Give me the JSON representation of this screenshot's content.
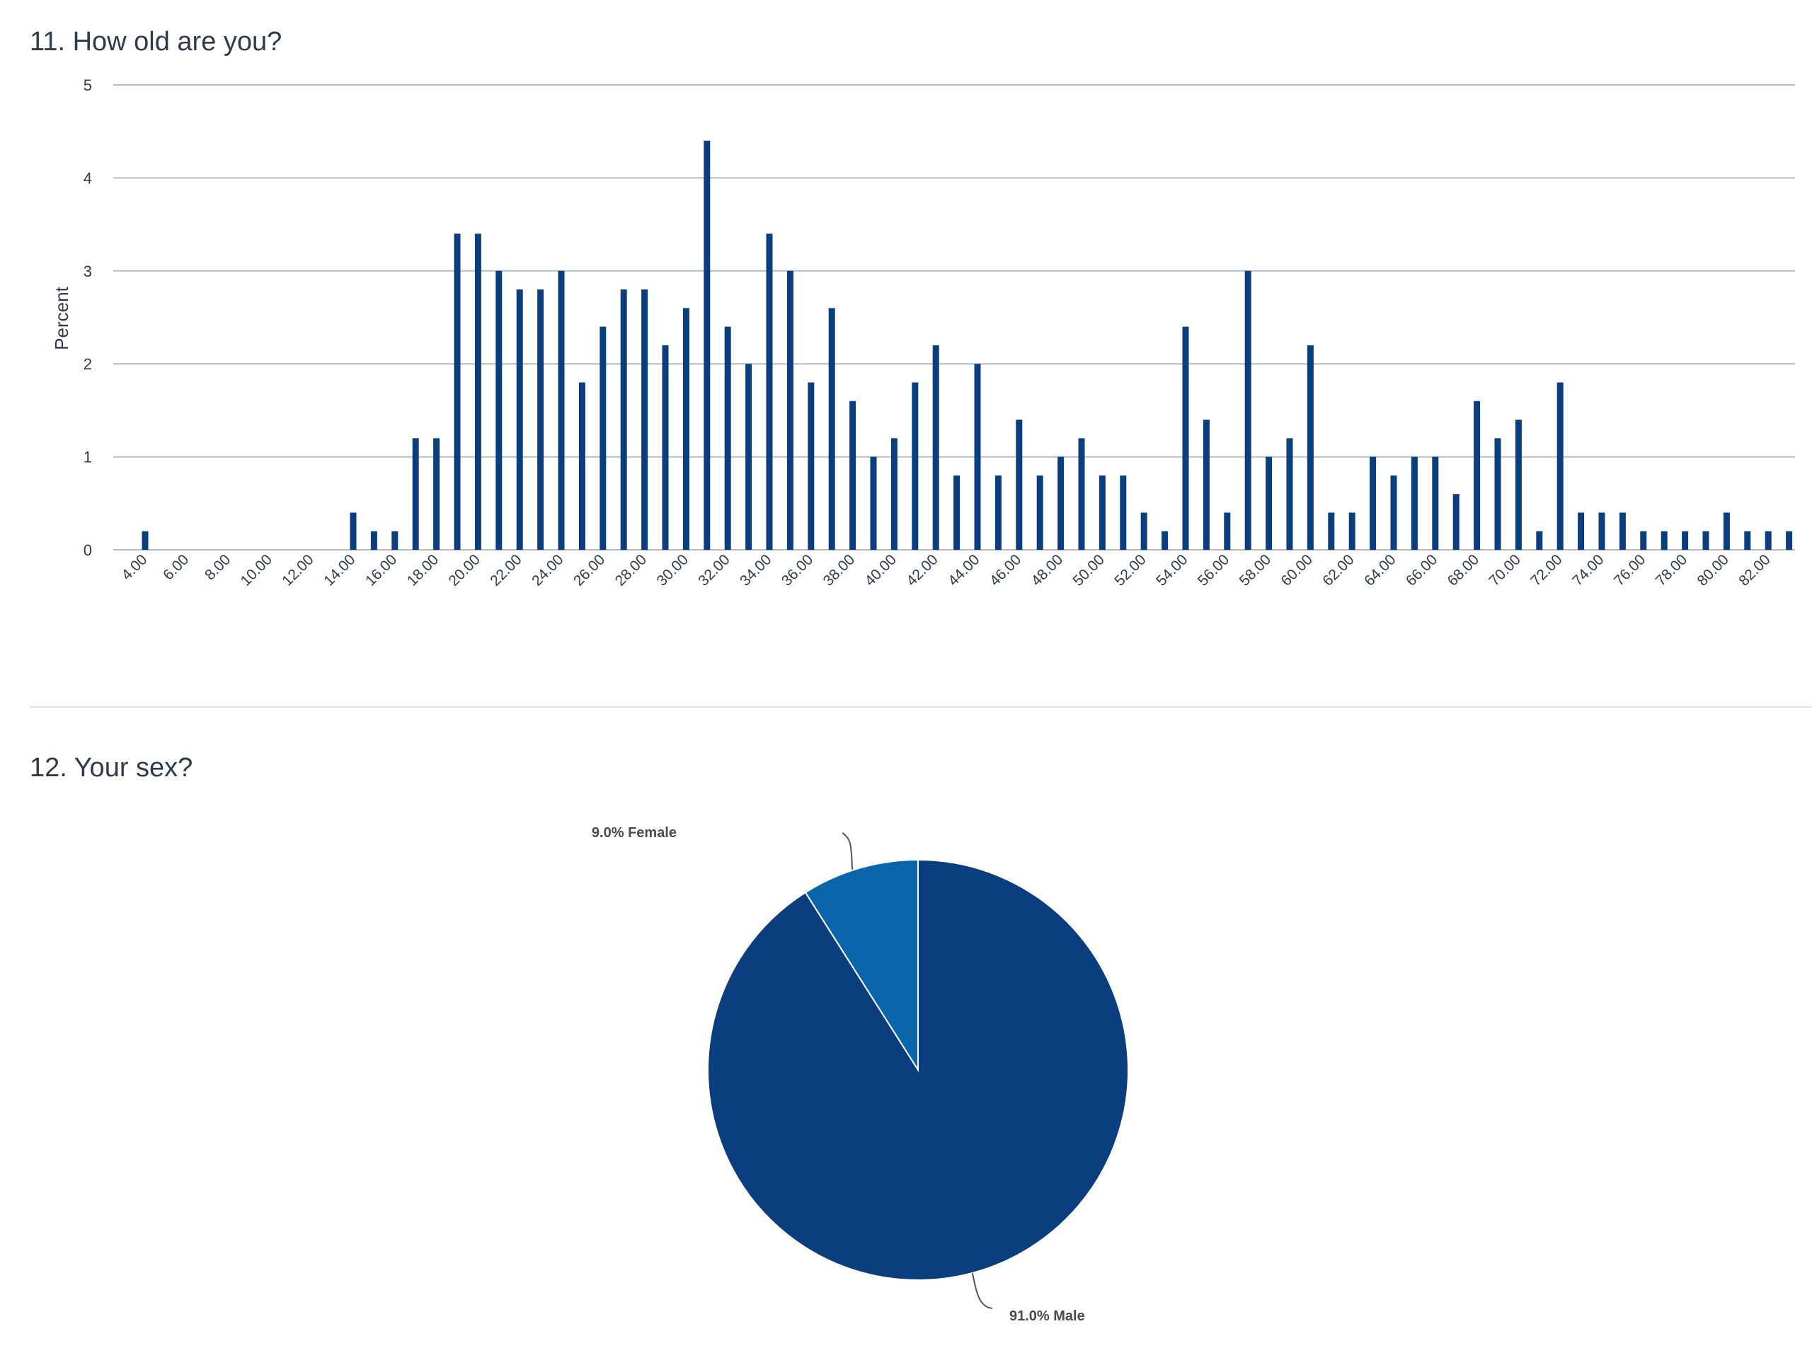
{
  "sections": [
    {
      "title": "11. How old are you?"
    },
    {
      "title": "12. Your sex?"
    }
  ],
  "colors": {
    "primary": "#0b3e7e",
    "secondary": "#0966aa",
    "grid": "#b7bcc4",
    "text": "#2f3b4c"
  },
  "chart_data": [
    {
      "type": "bar",
      "ylabel": "Percent",
      "xlabel": "",
      "ylim": [
        0,
        5
      ],
      "yticks": [
        "0",
        "1",
        "2",
        "3",
        "4",
        "5"
      ],
      "grid": true,
      "categories": [
        "4.00",
        "6.00",
        "8.00",
        "10.00",
        "12.00",
        "14.00",
        "16.00",
        "18.00",
        "20.00",
        "22.00",
        "24.00",
        "26.00",
        "28.00",
        "30.00",
        "32.00",
        "34.00",
        "36.00",
        "38.00",
        "40.00",
        "42.00",
        "44.00",
        "46.00",
        "48.00",
        "50.00",
        "52.00",
        "54.00",
        "56.00",
        "58.00",
        "60.00",
        "62.00",
        "64.00",
        "66.00",
        "68.00",
        "70.00",
        "72.00",
        "74.00",
        "76.00",
        "78.00",
        "80.00",
        "82.00"
      ],
      "points": [
        {
          "x": 4,
          "y": 0.2
        },
        {
          "x": 14,
          "y": 0.4
        },
        {
          "x": 15,
          "y": 0.2
        },
        {
          "x": 16,
          "y": 0.2
        },
        {
          "x": 17,
          "y": 1.2
        },
        {
          "x": 18,
          "y": 1.2
        },
        {
          "x": 19,
          "y": 3.4
        },
        {
          "x": 20,
          "y": 3.4
        },
        {
          "x": 21,
          "y": 3.0
        },
        {
          "x": 22,
          "y": 2.8
        },
        {
          "x": 23,
          "y": 2.8
        },
        {
          "x": 24,
          "y": 3.0
        },
        {
          "x": 25,
          "y": 1.8
        },
        {
          "x": 26,
          "y": 2.4
        },
        {
          "x": 27,
          "y": 2.8
        },
        {
          "x": 28,
          "y": 2.8
        },
        {
          "x": 29,
          "y": 2.2
        },
        {
          "x": 30,
          "y": 2.6
        },
        {
          "x": 31,
          "y": 4.4
        },
        {
          "x": 32,
          "y": 2.4
        },
        {
          "x": 33,
          "y": 2.0
        },
        {
          "x": 34,
          "y": 3.4
        },
        {
          "x": 35,
          "y": 3.0
        },
        {
          "x": 36,
          "y": 1.8
        },
        {
          "x": 37,
          "y": 2.6
        },
        {
          "x": 38,
          "y": 1.6
        },
        {
          "x": 39,
          "y": 1.0
        },
        {
          "x": 40,
          "y": 1.2
        },
        {
          "x": 41,
          "y": 1.8
        },
        {
          "x": 42,
          "y": 2.2
        },
        {
          "x": 43,
          "y": 0.8
        },
        {
          "x": 44,
          "y": 2.0
        },
        {
          "x": 45,
          "y": 0.8
        },
        {
          "x": 46,
          "y": 1.4
        },
        {
          "x": 47,
          "y": 0.8
        },
        {
          "x": 48,
          "y": 1.0
        },
        {
          "x": 49,
          "y": 1.2
        },
        {
          "x": 50,
          "y": 0.8
        },
        {
          "x": 51,
          "y": 0.8
        },
        {
          "x": 52,
          "y": 0.4
        },
        {
          "x": 53,
          "y": 0.2
        },
        {
          "x": 54,
          "y": 2.4
        },
        {
          "x": 55,
          "y": 1.4
        },
        {
          "x": 56,
          "y": 0.4
        },
        {
          "x": 57,
          "y": 3.0
        },
        {
          "x": 58,
          "y": 1.0
        },
        {
          "x": 59,
          "y": 1.2
        },
        {
          "x": 60,
          "y": 2.2
        },
        {
          "x": 61,
          "y": 0.4
        },
        {
          "x": 62,
          "y": 0.4
        },
        {
          "x": 63,
          "y": 1.0
        },
        {
          "x": 64,
          "y": 0.8
        },
        {
          "x": 65,
          "y": 1.0
        },
        {
          "x": 66,
          "y": 1.0
        },
        {
          "x": 67,
          "y": 0.6
        },
        {
          "x": 68,
          "y": 1.6
        },
        {
          "x": 69,
          "y": 1.2
        },
        {
          "x": 70,
          "y": 1.4
        },
        {
          "x": 71,
          "y": 0.2
        },
        {
          "x": 72,
          "y": 1.8
        },
        {
          "x": 73,
          "y": 0.4
        },
        {
          "x": 74,
          "y": 0.4
        },
        {
          "x": 75,
          "y": 0.4
        },
        {
          "x": 76,
          "y": 0.2
        },
        {
          "x": 77,
          "y": 0.2
        },
        {
          "x": 78,
          "y": 0.2
        },
        {
          "x": 79,
          "y": 0.2
        },
        {
          "x": 80,
          "y": 0.4
        },
        {
          "x": 81,
          "y": 0.2
        },
        {
          "x": 82,
          "y": 0.2
        },
        {
          "x": 83,
          "y": 0.2
        }
      ]
    },
    {
      "type": "pie",
      "slices": [
        {
          "value": 9.0,
          "label": "9.0% Female",
          "color": "#0966aa"
        },
        {
          "value": 91.0,
          "label": "91.0% Male",
          "color": "#0b3e7e"
        }
      ]
    }
  ]
}
